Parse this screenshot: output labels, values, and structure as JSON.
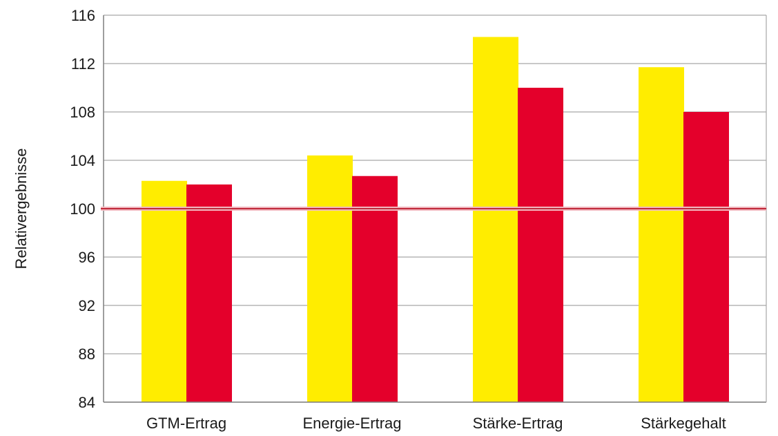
{
  "chart_data": {
    "type": "bar",
    "title": "",
    "xlabel": "",
    "ylabel": "Relativergebnisse",
    "categories": [
      "GTM-Ertrag",
      "Energie-Ertrag",
      "Stärke-Ertrag",
      "Stärkegehalt"
    ],
    "series": [
      {
        "values": [
          102.3,
          104.4,
          114.2,
          111.7
        ],
        "color": "#ffed00"
      },
      {
        "values": [
          102.0,
          102.7,
          110.0,
          108.0
        ],
        "color": "#e4002b"
      }
    ],
    "ylim": [
      84,
      116
    ],
    "yticks": [
      84,
      88,
      92,
      96,
      100,
      104,
      108,
      112,
      116
    ],
    "grid": true,
    "legend": "none",
    "reference_line": {
      "value": 100,
      "color": "#c0293a"
    }
  }
}
